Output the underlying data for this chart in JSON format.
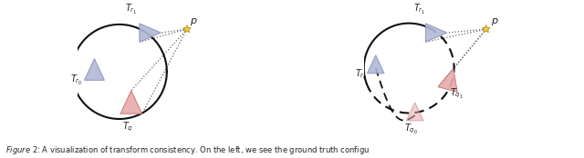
{
  "bg_color": "#ffffff",
  "triangle_blue_color": "#b0b8d8",
  "triangle_pink_color": "#e8aaaa",
  "line_color": "#222222",
  "star_color": "#f0d060",
  "dotted_line_color": "#555555",
  "caption": "re 2: A visualization of transform consistency. On the left, we see the ground truth configu",
  "figsize": [
    6.4,
    1.74
  ],
  "dpi": 100
}
